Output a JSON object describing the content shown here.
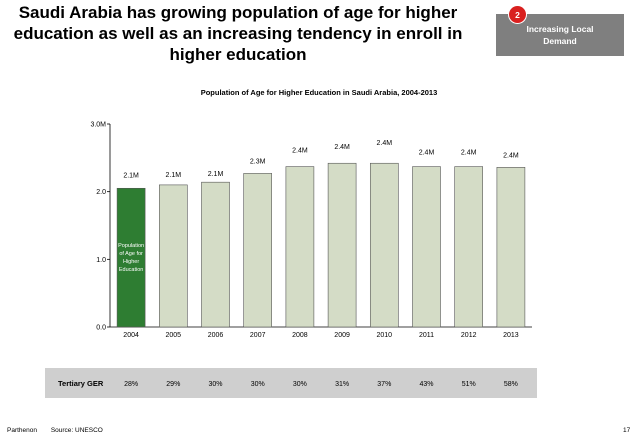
{
  "header": {
    "title_lines": [
      "Saudi Arabia has growing population of age for higher",
      "education as well as an increasing tendency in enroll in",
      "higher education"
    ],
    "badge_number": "2",
    "badge_lines": [
      "Increasing Local",
      "Demand"
    ]
  },
  "footer": {
    "brand": "Parthenon",
    "source": "Source: UNESCO",
    "page": "17"
  },
  "colors": {
    "bar": "#d4dcc6",
    "bar_highlight": "#2e7d32",
    "badge": "#7f7f7f",
    "badge_number": "#d9201f",
    "band": "#cfcfcf"
  },
  "chart_data": {
    "type": "bar",
    "title": "Population of Age for Higher Education in Saudi Arabia, 2004-2013",
    "categories": [
      "2004",
      "2005",
      "2006",
      "2007",
      "2008",
      "2009",
      "2010",
      "2011",
      "2012",
      "2013"
    ],
    "values": [
      2.05,
      2.1,
      2.14,
      2.27,
      2.37,
      2.42,
      2.42,
      2.37,
      2.37,
      2.36
    ],
    "data_labels": [
      "2.1M",
      "2.1M",
      "2.1M",
      "2.3M",
      "2.4M",
      "2.4M",
      "2.4M",
      "2.4M",
      "2.4M",
      "2.4M"
    ],
    "ylim": [
      0,
      3
    ],
    "yticks": [
      "0.0",
      "1.0",
      "2.0",
      "3.0M"
    ],
    "highlight_index": 0,
    "highlight_annotation": [
      "Population",
      "of Age for",
      "Higher",
      "Education"
    ],
    "xlabel": "",
    "ylabel": "",
    "grid": false,
    "table": {
      "label": "Tertiary GER",
      "values": [
        "28%",
        "29%",
        "30%",
        "30%",
        "30%",
        "31%",
        "37%",
        "43%",
        "51%",
        "58%"
      ]
    }
  }
}
